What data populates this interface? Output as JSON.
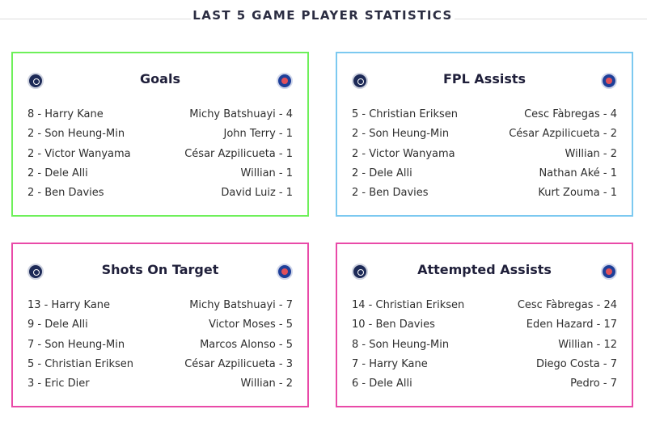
{
  "header": {
    "title": "LAST 5 GAME PLAYER STATISTICS"
  },
  "cards": {
    "goals": {
      "title": "Goals",
      "left": [
        "8 - Harry Kane",
        "2 - Son Heung-Min",
        "2 - Victor Wanyama",
        "2 - Dele Alli",
        "2 - Ben Davies"
      ],
      "right": [
        "Michy Batshuayi - 4",
        "John Terry - 1",
        "César Azpilicueta - 1",
        "Willian - 1",
        "David Luiz - 1"
      ]
    },
    "fpl_assists": {
      "title": "FPL Assists",
      "left": [
        "5 - Christian Eriksen",
        "2 - Son Heung-Min",
        "2 - Victor Wanyama",
        "2 - Dele Alli",
        "2 - Ben Davies"
      ],
      "right": [
        "Cesc Fàbregas - 4",
        "César Azpilicueta - 2",
        "Willian - 2",
        "Nathan Aké - 1",
        "Kurt Zouma - 1"
      ]
    },
    "shots_on_target": {
      "title": "Shots On Target",
      "left": [
        "13 - Harry Kane",
        "9 - Dele Alli",
        "7 - Son Heung-Min",
        "5 - Christian Eriksen",
        "3 - Eric Dier"
      ],
      "right": [
        "Michy Batshuayi - 7",
        "Victor Moses - 5",
        "Marcos Alonso - 5",
        "César Azpilicueta - 3",
        "Willian - 2"
      ]
    },
    "attempted_assists": {
      "title": "Attempted Assists",
      "left": [
        "14 - Christian Eriksen",
        "10 - Ben Davies",
        "8 - Son Heung-Min",
        "7 - Harry Kane",
        "6 - Dele Alli"
      ],
      "right": [
        "Cesc Fàbregas - 24",
        "Eden Hazard - 17",
        "Willian - 12",
        "Diego Costa - 7",
        "Pedro - 7"
      ]
    }
  }
}
